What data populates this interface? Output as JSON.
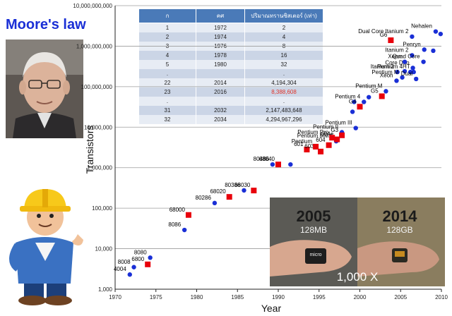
{
  "headline": "Moore's law",
  "table": {
    "columns": [
      "ก",
      "คศ",
      "ปริมาณทรานซิสเตอร์ (เท่า)"
    ],
    "rows": [
      [
        "1",
        "1972",
        "2"
      ],
      [
        "2",
        "1974",
        "4"
      ],
      [
        "3",
        "1976",
        "8"
      ],
      [
        "4",
        "1978",
        "16"
      ],
      [
        "5",
        "1980",
        "32"
      ],
      [
        ".",
        "",
        "."
      ],
      [
        "22",
        "2014",
        "4,194,304"
      ],
      [
        "23",
        "2016",
        "8,388,608"
      ],
      [
        ".",
        "",
        "."
      ],
      [
        "31",
        "2032",
        "2,147,483,648"
      ],
      [
        "32",
        "2034",
        "4,294,967,296"
      ]
    ],
    "highlight_row": 7,
    "highlight_color": "#e0352b"
  },
  "photo": {
    "left_year": "2005",
    "left_size": "128MB",
    "left_card_label": "micro",
    "right_year": "2014",
    "right_size": "128GB",
    "multiplier": "1,000 X"
  },
  "colors": {
    "headline": "#1a2fd6",
    "blue_series": "#1a2fd6",
    "red_series": "#e8000b",
    "table_header": "#4a7ab8"
  },
  "chart_data": {
    "type": "scatter",
    "scale": "log",
    "xlabel": "Year",
    "ylabel": "Transistors",
    "xlim": [
      1970,
      2010
    ],
    "ylim": [
      1000,
      10000000000
    ],
    "x_ticks": [
      "1970",
      "1975",
      "1980",
      "1985",
      "1990",
      "1995",
      "2000",
      "2005",
      "2010"
    ],
    "y_ticks": [
      "1,000",
      "10,000",
      "100,000",
      "1,000,000",
      "10,000,000",
      "100,000,000",
      "1,000,000,000",
      "10,000,000,000"
    ],
    "grid": "horizontal",
    "series": [
      {
        "color": "#1a2fd6",
        "marker": "circle",
        "points": [
          {
            "x": 1971.8,
            "y": 2300,
            "label": "4004"
          },
          {
            "x": 1972.3,
            "y": 3500,
            "label": "8008"
          },
          {
            "x": 1974.3,
            "y": 6000,
            "label": "8080"
          },
          {
            "x": 1978.5,
            "y": 29000,
            "label": "8086"
          },
          {
            "x": 1982.2,
            "y": 134000,
            "label": "80286"
          },
          {
            "x": 1985.8,
            "y": 275000,
            "label": "80386"
          },
          {
            "x": 1989.3,
            "y": 1200000,
            "label": "80486"
          },
          {
            "x": 1991.5,
            "y": 1200000,
            "label": ""
          },
          {
            "x": 1997.1,
            "y": 4500000,
            "label": "Pentium MMX"
          },
          {
            "x": 1997.8,
            "y": 7500000,
            "label": "Pentium II"
          },
          {
            "x": 1999.5,
            "y": 9500000,
            "label": "Pentium III"
          },
          {
            "x": 1999.1,
            "y": 24000000,
            "label": ""
          },
          {
            "x": 1999.3,
            "y": 42000000,
            "label": ""
          },
          {
            "x": 2000.5,
            "y": 42000000,
            "label": "Pentium 4"
          },
          {
            "x": 2001.1,
            "y": 55000000,
            "label": ""
          },
          {
            "x": 2003.2,
            "y": 77000000,
            "label": "Pentium M"
          },
          {
            "x": 2004.5,
            "y": 140000000,
            "label": "Xeon"
          },
          {
            "x": 2004.6,
            "y": 230000000,
            "label": "Itanium 2"
          },
          {
            "x": 2005.2,
            "y": 169000000,
            "label": "Pentium M"
          },
          {
            "x": 2005.5,
            "y": 240000000,
            "label": ""
          },
          {
            "x": 2006.2,
            "y": 230000000,
            "label": ""
          },
          {
            "x": 2006.6,
            "y": 230000000,
            "label": "Pentium 4HT"
          },
          {
            "x": 2006.5,
            "y": 290000000,
            "label": "Core Duo"
          },
          {
            "x": 2006.9,
            "y": 155000000,
            "label": "Dual"
          },
          {
            "x": 2005.5,
            "y": 410000000,
            "label": "Xeon"
          },
          {
            "x": 2006.4,
            "y": 592000000,
            "label": "Itanium 2"
          },
          {
            "x": 2007.8,
            "y": 410000000,
            "label": "Quad Core"
          },
          {
            "x": 2007.9,
            "y": 820000000,
            "label": "Penryn"
          },
          {
            "x": 2006.4,
            "y": 1720000000,
            "label": "Dual Core Itanium 2"
          },
          {
            "x": 2009.0,
            "y": 770000000,
            "label": ""
          },
          {
            "x": 2009.3,
            "y": 2300000000,
            "label": "Nehalen"
          },
          {
            "x": 2009.9,
            "y": 2000000000,
            "label": ""
          }
        ]
      },
      {
        "color": "#e8000b",
        "marker": "square",
        "points": [
          {
            "x": 1974.0,
            "y": 4100,
            "label": "6800"
          },
          {
            "x": 1979.0,
            "y": 68000,
            "label": "68000"
          },
          {
            "x": 1984.0,
            "y": 190000,
            "label": "68020"
          },
          {
            "x": 1987.0,
            "y": 273000,
            "label": "68030"
          },
          {
            "x": 1990.0,
            "y": 1200000,
            "label": "68040"
          },
          {
            "x": 1993.5,
            "y": 2800000,
            "label": "601"
          },
          {
            "x": 1995.2,
            "y": 2500000,
            "label": "603e"
          },
          {
            "x": 1996.2,
            "y": 3600000,
            "label": "604"
          },
          {
            "x": 1997.2,
            "y": 5000000,
            "label": "604e"
          },
          {
            "x": 1997.8,
            "y": 6300000,
            "label": "G3"
          },
          {
            "x": 2000.0,
            "y": 32000000,
            "label": "G4"
          },
          {
            "x": 2002.7,
            "y": 58000000,
            "label": "G5"
          },
          {
            "x": 2003.8,
            "y": 1400000000,
            "label": "G6"
          },
          {
            "x": 1994.6,
            "y": 3300000,
            "label": "Pentium"
          },
          {
            "x": 1996.6,
            "y": 5500000,
            "label": "Pentium Pro"
          }
        ]
      }
    ]
  }
}
